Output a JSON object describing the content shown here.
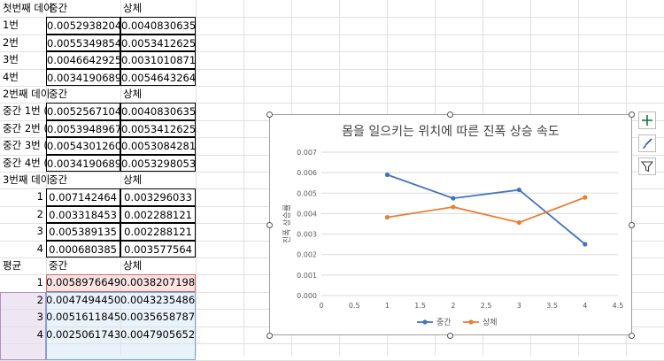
{
  "sheet": {
    "table1": {
      "title": "첫번째 데이",
      "col1": "중간",
      "col2": "상체",
      "rows": [
        {
          "label": "1번",
          "a": "0.0052938204",
          "b": "0.0040830635"
        },
        {
          "label": "2번",
          "a": "0.0055349854",
          "b": "0.0053412625"
        },
        {
          "label": "3번",
          "a": "0.0046642925",
          "b": "0.0031010871"
        },
        {
          "label": "4번",
          "a": "0.0034190689",
          "b": "0.0054643264"
        }
      ]
    },
    "table2": {
      "title": "2번째 데이",
      "col1": "중간",
      "col2": "상체",
      "rows": [
        {
          "label": "중간 1번 (",
          "a": "0.0052567104",
          "b": "0.0040830635"
        },
        {
          "label": "중간 2번 (",
          "a": "0.0053948967",
          "b": "0.0053412625"
        },
        {
          "label": "중간 3번 (",
          "a": "0.0054301260",
          "b": "0.0053084281"
        },
        {
          "label": "중간 4번 (",
          "a": "0.0034190689",
          "b": "0.0053298053"
        }
      ]
    },
    "table3": {
      "title": "3번째 데이",
      "col1": "중간",
      "col2": "상체",
      "rows": [
        {
          "label": "1",
          "a": "0.007142464",
          "b": "0.003296033"
        },
        {
          "label": "2",
          "a": "0.003318453",
          "b": "0.002288121"
        },
        {
          "label": "3",
          "a": "0.005389135",
          "b": "0.002288121"
        },
        {
          "label": "4",
          "a": "0.000680385",
          "b": "0.003577564"
        }
      ]
    },
    "table4": {
      "title": "평균",
      "col1": "중간",
      "col2": "상체",
      "rows": [
        {
          "label": "1",
          "a": "0.0058976649",
          "b": "0.0038207198"
        },
        {
          "label": "2",
          "a": "0.0047494450",
          "b": "0.0043235486"
        },
        {
          "label": "3",
          "a": "0.0051611845",
          "b": "0.0035658787"
        },
        {
          "label": "4",
          "a": "0.0025061743",
          "b": "0.0047905652"
        }
      ]
    }
  },
  "chart_data": {
    "type": "line",
    "title": "몸을 일으키는 위치에 따른 진폭 상승 속도",
    "xlabel": "",
    "ylabel": "진폭 상승률",
    "xlim": [
      0,
      4.5
    ],
    "ylim": [
      0,
      0.007
    ],
    "x_ticks": [
      "0",
      "0.5",
      "1",
      "1.5",
      "2",
      "2.5",
      "3",
      "3.5",
      "4",
      "4.5"
    ],
    "y_ticks": [
      "0.000",
      "0.001",
      "0.002",
      "0.003",
      "0.004",
      "0.005",
      "0.006",
      "0.007"
    ],
    "x": [
      1,
      2,
      3,
      4
    ],
    "series": [
      {
        "name": "중간",
        "color": "#4472c4",
        "values": [
          0.0058976649,
          0.004749445,
          0.0051611845,
          0.0025061743
        ]
      },
      {
        "name": "상체",
        "color": "#ed7d31",
        "values": [
          0.0038207198,
          0.0043235486,
          0.0035658787,
          0.0047905652
        ]
      }
    ],
    "grid": true,
    "legend": "bottom"
  },
  "chart_tools": {
    "elements_icon": "plus-icon",
    "styles_icon": "brush-icon",
    "filter_icon": "funnel-icon"
  }
}
